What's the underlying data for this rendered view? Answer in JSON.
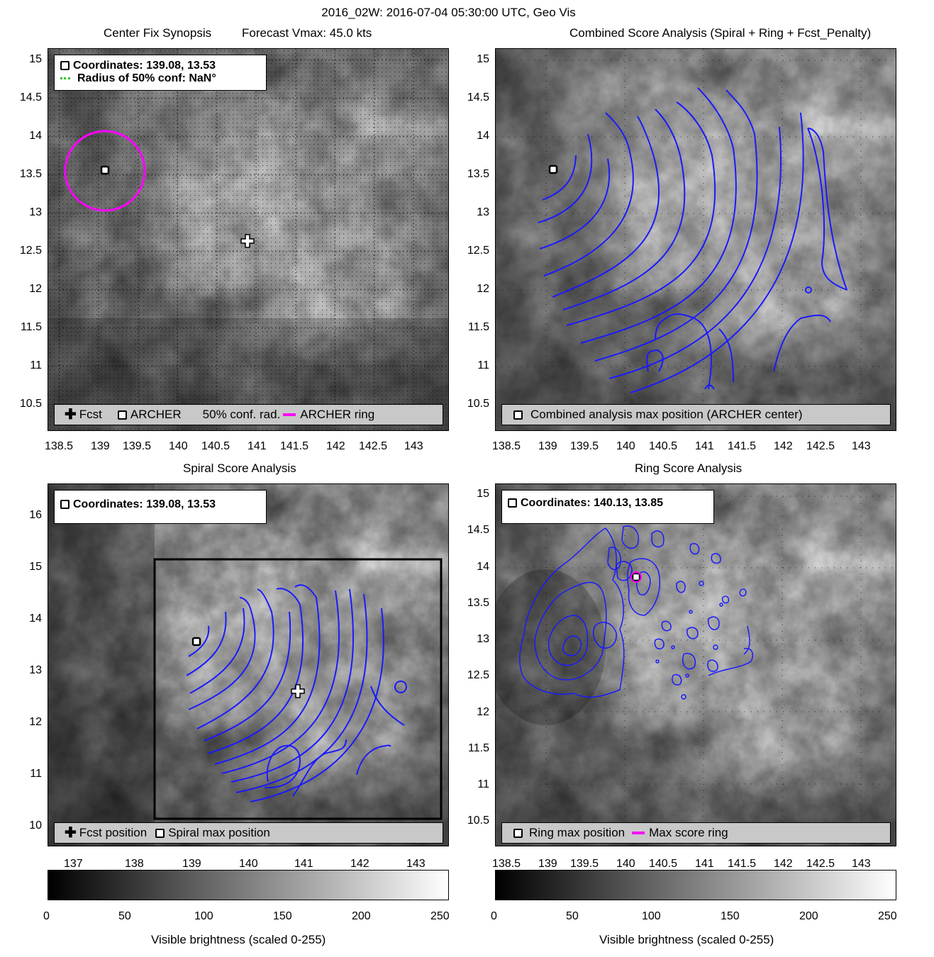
{
  "suptitle": "2016_02W: 2016-07-04 05:30:00 UTC, Geo Vis",
  "colors": {
    "contour": "#1a1aff",
    "ring": "#ff00ff",
    "conf_legend": "#2cc12c"
  },
  "panels": {
    "center_fix": {
      "title_left": "Center Fix Synopsis",
      "title_right": "Forecast Vmax: 45.0 kts",
      "info_line1": "Coordinates: 139.08, 13.53",
      "info_line2": "Radius of 50% conf: NaN°",
      "legend": {
        "fcst": "Fcst",
        "archer": "ARCHER",
        "conf": "50% conf. rad.",
        "ring": "ARCHER ring"
      },
      "yticks": [
        "15",
        "14.5",
        "14",
        "13.5",
        "13",
        "12.5",
        "12",
        "11.5",
        "11",
        "10.5"
      ],
      "xticks": [
        "138.5",
        "139",
        "139.5",
        "140",
        "140.5",
        "141",
        "141.5",
        "142",
        "142.5",
        "143"
      ]
    },
    "combined": {
      "title": "Combined Score Analysis (Spiral + Ring + Fcst_Penalty)",
      "legend": "Combined analysis max position (ARCHER center)",
      "yticks": [
        "15",
        "14.5",
        "14",
        "13.5",
        "13",
        "12.5",
        "12",
        "11.5",
        "11",
        "10.5"
      ],
      "xticks": [
        "138.5",
        "139",
        "139.5",
        "140",
        "140.5",
        "141",
        "141.5",
        "142",
        "142.5",
        "143"
      ]
    },
    "spiral": {
      "title": "Spiral Score Analysis",
      "info": "Coordinates: 139.08, 13.53",
      "legend": {
        "fcst": "Fcst position",
        "max": "Spiral max position"
      },
      "yticks": [
        "16",
        "15",
        "14",
        "13",
        "12",
        "11",
        "10"
      ],
      "xticks": [
        "137",
        "138",
        "139",
        "140",
        "141",
        "142",
        "143"
      ]
    },
    "ring": {
      "title": "Ring Score Analysis",
      "info": "Coordinates: 140.13, 13.85",
      "legend": {
        "max": "Ring max position",
        "ring": "Max score ring"
      },
      "yticks": [
        "15",
        "14.5",
        "14",
        "13.5",
        "13",
        "12.5",
        "12",
        "11.5",
        "11",
        "10.5"
      ],
      "xticks": [
        "138.5",
        "139",
        "139.5",
        "140",
        "140.5",
        "141",
        "141.5",
        "142",
        "142.5",
        "143"
      ]
    }
  },
  "colorbars": {
    "ticks": [
      "0",
      "50",
      "100",
      "150",
      "200",
      "250"
    ],
    "label": "Visible brightness (scaled 0-255)"
  }
}
